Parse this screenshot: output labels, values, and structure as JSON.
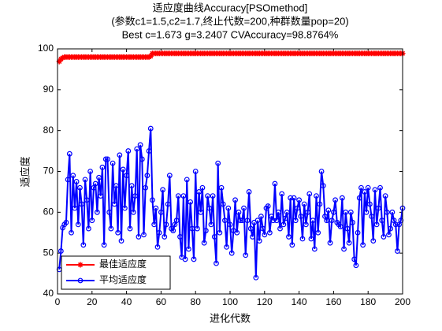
{
  "chart_data": {
    "type": "line",
    "title": [
      "适应度曲线Accuracy[PSOmethod]",
      "(参数c1=1.5,c2=1.7,终止代数=200,种群数量pop=20)",
      "Best c=1.673 g=3.2407 CVAccuracy=98.8764%"
    ],
    "xlabel": "进化代数",
    "ylabel": "适应度",
    "xlim": [
      0,
      200
    ],
    "ylim": [
      40,
      100
    ],
    "xticks": [
      0,
      20,
      40,
      60,
      80,
      100,
      120,
      140,
      160,
      180,
      200
    ],
    "yticks": [
      40,
      50,
      60,
      70,
      80,
      90,
      100
    ],
    "legend": "lower left",
    "grid": false,
    "x": [
      1,
      2,
      3,
      4,
      5,
      6,
      7,
      8,
      9,
      10,
      11,
      12,
      13,
      14,
      15,
      16,
      17,
      18,
      19,
      20,
      21,
      22,
      23,
      24,
      25,
      26,
      27,
      28,
      29,
      30,
      31,
      32,
      33,
      34,
      35,
      36,
      37,
      38,
      39,
      40,
      41,
      42,
      43,
      44,
      45,
      46,
      47,
      48,
      49,
      50,
      51,
      52,
      53,
      54,
      55,
      56,
      57,
      58,
      59,
      60,
      61,
      62,
      63,
      64,
      65,
      66,
      67,
      68,
      69,
      70,
      71,
      72,
      73,
      74,
      75,
      76,
      77,
      78,
      79,
      80,
      81,
      82,
      83,
      84,
      85,
      86,
      87,
      88,
      89,
      90,
      91,
      92,
      93,
      94,
      95,
      96,
      97,
      98,
      99,
      100,
      101,
      102,
      103,
      104,
      105,
      106,
      107,
      108,
      109,
      110,
      111,
      112,
      113,
      114,
      115,
      116,
      117,
      118,
      119,
      120,
      121,
      122,
      123,
      124,
      125,
      126,
      127,
      128,
      129,
      130,
      131,
      132,
      133,
      134,
      135,
      136,
      137,
      138,
      139,
      140,
      141,
      142,
      143,
      144,
      145,
      146,
      147,
      148,
      149,
      150,
      151,
      152,
      153,
      154,
      155,
      156,
      157,
      158,
      159,
      160,
      161,
      162,
      163,
      164,
      165,
      166,
      167,
      168,
      169,
      170,
      171,
      172,
      173,
      174,
      175,
      176,
      177,
      178,
      179,
      180,
      181,
      182,
      183,
      184,
      185,
      186,
      187,
      188,
      189,
      190,
      191,
      192,
      193,
      194,
      195,
      196,
      197,
      198,
      199,
      200
    ],
    "series": [
      {
        "name": "最佳适应度",
        "color": "#ff0000",
        "marker": "star",
        "values": [
          96.9,
          97.5,
          97.8,
          98,
          98,
          98,
          98,
          98,
          98,
          98,
          98,
          98,
          98,
          98,
          98,
          98,
          98,
          98,
          98,
          98,
          98,
          98,
          98,
          98,
          98,
          98,
          98,
          98,
          98,
          98,
          98,
          98,
          98,
          98,
          98,
          98,
          98,
          98,
          98,
          98,
          98,
          98,
          98,
          98,
          98,
          98,
          98,
          98,
          98,
          98,
          98,
          98,
          98,
          98.2,
          98.88,
          98.88,
          98.88,
          98.88,
          98.88,
          98.88,
          98.88,
          98.88,
          98.88,
          98.88,
          98.88,
          98.88,
          98.88,
          98.88,
          98.88,
          98.88,
          98.88,
          98.88,
          98.88,
          98.88,
          98.88,
          98.88,
          98.88,
          98.88,
          98.88,
          98.88,
          98.88,
          98.88,
          98.88,
          98.88,
          98.88,
          98.88,
          98.88,
          98.88,
          98.88,
          98.88,
          98.88,
          98.88,
          98.88,
          98.88,
          98.88,
          98.88,
          98.88,
          98.88,
          98.88,
          98.88,
          98.88,
          98.88,
          98.88,
          98.88,
          98.88,
          98.88,
          98.88,
          98.88,
          98.88,
          98.88,
          98.88,
          98.88,
          98.88,
          98.88,
          98.88,
          98.88,
          98.88,
          98.88,
          98.88,
          98.88,
          98.88,
          98.88,
          98.88,
          98.88,
          98.88,
          98.88,
          98.88,
          98.88,
          98.88,
          98.88,
          98.88,
          98.88,
          98.88,
          98.88,
          98.88,
          98.88,
          98.88,
          98.88,
          98.88,
          98.88,
          98.88,
          98.88,
          98.88,
          98.88,
          98.88,
          98.88,
          98.88,
          98.88,
          98.88,
          98.88,
          98.88,
          98.88,
          98.88,
          98.88,
          98.88,
          98.88,
          98.88,
          98.88,
          98.88,
          98.88,
          98.88,
          98.88,
          98.88,
          98.88,
          98.88,
          98.88,
          98.88,
          98.88,
          98.88,
          98.88,
          98.88,
          98.88,
          98.88,
          98.88,
          98.88,
          98.88,
          98.88,
          98.88,
          98.88,
          98.88,
          98.88,
          98.88,
          98.88,
          98.88,
          98.88,
          98.88,
          98.88,
          98.88,
          98.88,
          98.88,
          98.88,
          98.88,
          98.88,
          98.88,
          98.88,
          98.88,
          98.88,
          98.88,
          98.88,
          98.88
        ]
      },
      {
        "name": "平均适应度",
        "color": "#0000ff",
        "marker": "circle",
        "values": [
          46,
          50.5,
          56.2,
          57,
          57.5,
          68,
          74.3,
          55,
          69,
          61,
          67.5,
          57,
          66,
          62,
          52,
          68,
          63,
          56,
          70,
          58,
          66,
          67,
          60,
          68.5,
          64,
          71,
          52,
          73,
          73,
          60,
          56,
          72,
          62,
          66.5,
          55,
          74,
          53,
          70.5,
          61,
          69,
          75,
          56,
          66.5,
          60,
          64,
          75.5,
          54,
          76.5,
          73,
          54.5,
          66,
          69,
          75,
          80.5,
          63,
          57,
          61,
          51.5,
          55,
          60,
          65.5,
          54,
          57,
          62,
          69,
          56,
          55.5,
          57,
          58,
          64,
          54,
          49,
          64,
          48.5,
          68,
          51,
          62.5,
          56,
          48.5,
          70,
          56,
          65,
          60,
          66,
          52.5,
          55.5,
          64,
          61,
          57,
          64,
          54,
          47.5,
          72,
          55,
          66,
          62,
          58,
          51.5,
          61,
          57,
          50,
          55.5,
          63,
          55,
          60,
          58,
          58,
          61,
          49.5,
          58,
          65,
          56,
          54,
          57.5,
          44,
          58,
          53,
          59,
          56,
          54.5,
          61,
          61.5,
          55,
          59,
          58,
          67,
          58,
          60,
          56,
          64.5,
          57,
          58.5,
          60,
          54,
          63.5,
          52,
          63.5,
          58,
          61,
          63,
          59,
          53.5,
          62,
          57,
          60,
          64.5,
          53.5,
          58,
          51,
          64,
          55,
          62,
          70,
          66.5,
          59,
          58,
          60.5,
          52.5,
          58,
          60,
          63,
          57.5,
          57,
          56.5,
          63.5,
          51,
          60,
          56,
          52.5,
          60,
          57.5,
          48.5,
          47,
          55,
          63.5,
          66,
          52,
          65,
          60,
          66,
          62,
          59,
          53,
          65.5,
          57,
          61,
          66,
          58,
          54,
          64,
          60,
          54.5,
          56,
          60,
          58,
          57,
          50.5,
          57,
          58,
          61
        ]
      }
    ]
  }
}
